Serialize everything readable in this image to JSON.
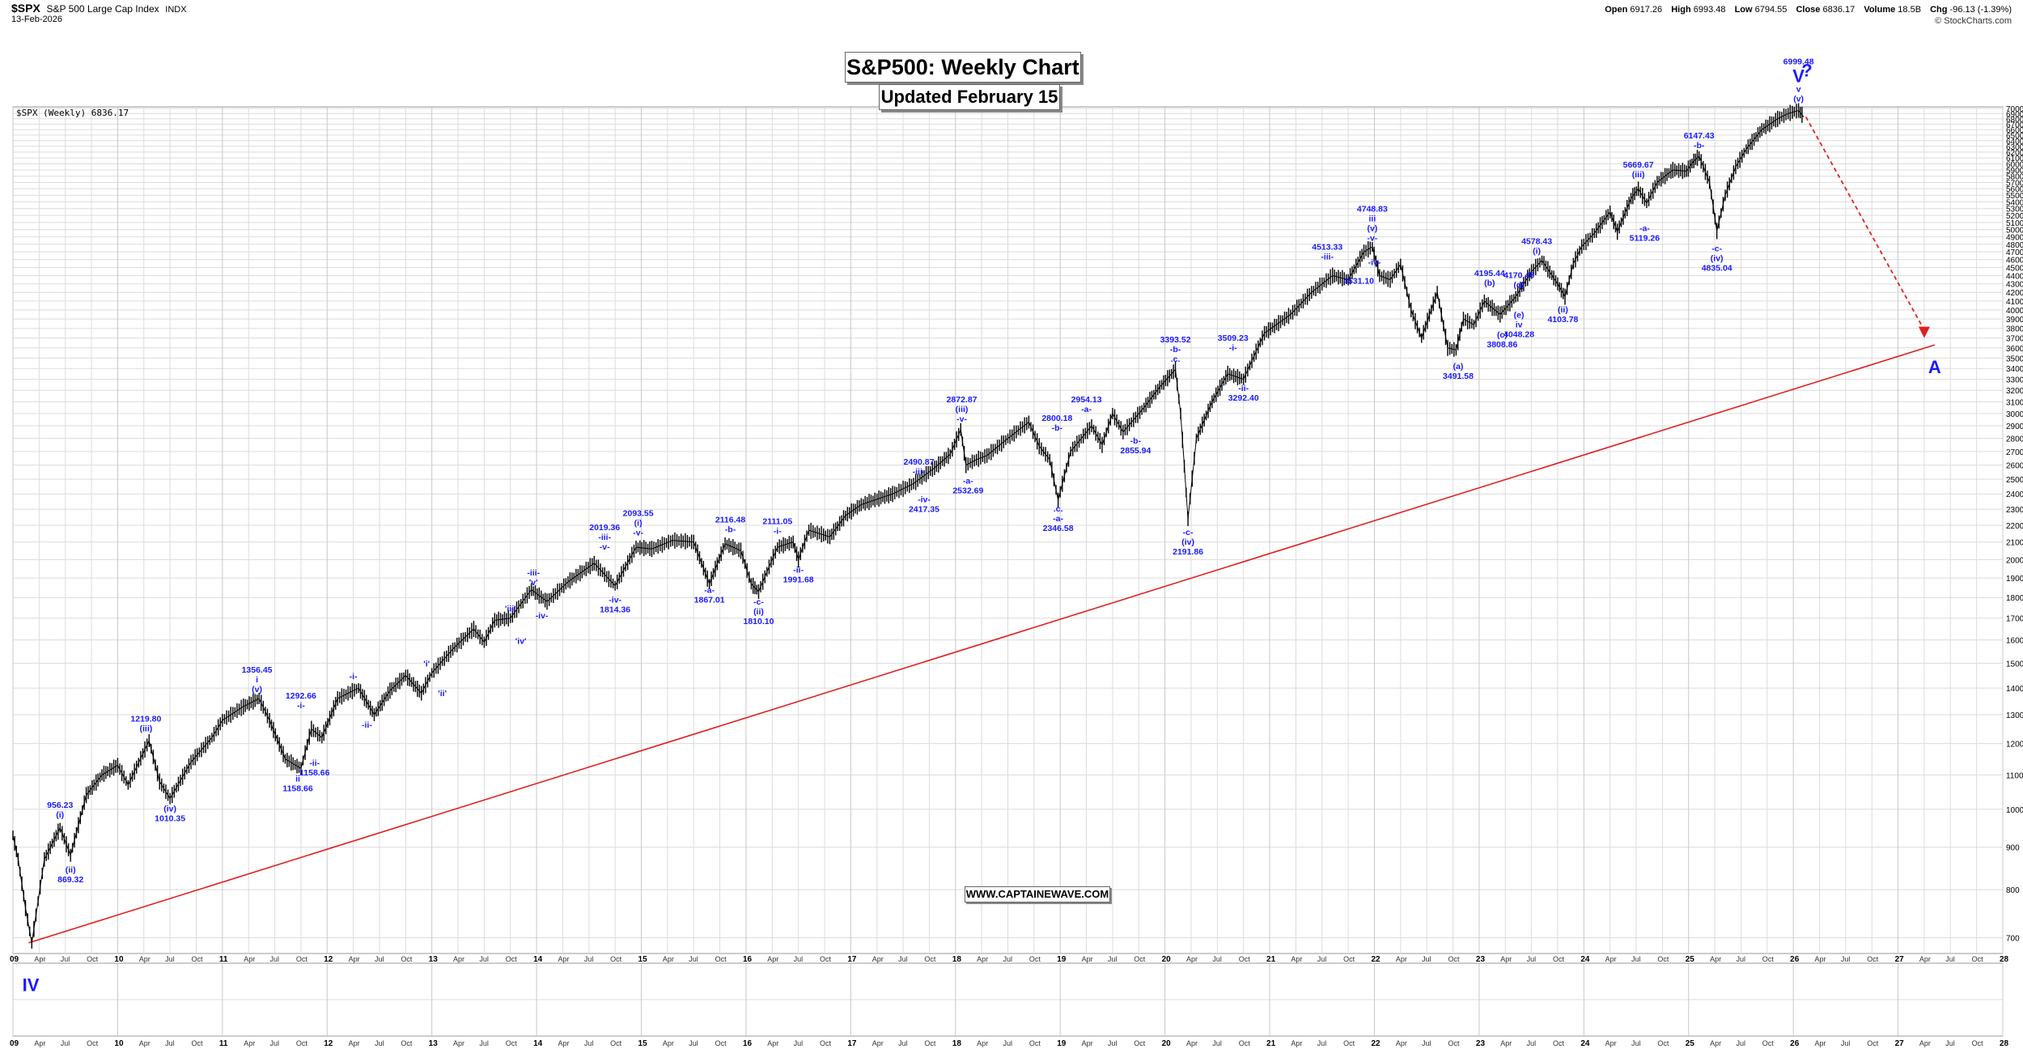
{
  "header": {
    "symbol": "$SPX",
    "name": "S&P 500 Large Cap Index",
    "exchange": "INDX",
    "date": "13-Feb-2026",
    "open_label": "Open",
    "open": "6917.26",
    "high_label": "High",
    "high": "6993.48",
    "low_label": "Low",
    "low": "6794.55",
    "close_label": "Close",
    "close": "6836.17",
    "volume_label": "Volume",
    "volume": "18.5B",
    "chg_label": "Chg",
    "chg": "-96.13 (-1.39%)",
    "source": "© StockCharts.com"
  },
  "title_box": "S&P500: Weekly Chart",
  "subtitle_box": "Updated February 15",
  "watermark": "WWW.CAPTAINEWAVE.COM",
  "legend": "$SPX (Weekly) 6836.17",
  "colors": {
    "wave_label": "#1a1aff",
    "price": "#000000",
    "trendline": "#e02020",
    "arrow": "#e02020",
    "grid": "#dcdcdc"
  },
  "chart_data": {
    "type": "line",
    "title": "S&P500: Weekly Chart",
    "scale": "log",
    "ylim": [
      650,
      7100
    ],
    "y_ticks": [
      700,
      800,
      900,
      1000,
      1100,
      1200,
      1300,
      1400,
      1500,
      1600,
      1700,
      1800,
      1900,
      2000,
      2100,
      2200,
      2300,
      2400,
      2500,
      2600,
      2700,
      2800,
      2900,
      3000,
      3100,
      3200,
      3300,
      3400,
      3500,
      3600,
      3700,
      3800,
      3900,
      4000,
      4100,
      4200,
      4300,
      4400,
      4500,
      4600,
      4700,
      4800,
      4900,
      5000,
      5100,
      5200,
      5300,
      5400,
      5500,
      5600,
      5700,
      5800,
      5900,
      6000,
      6100,
      6200,
      6300,
      6400,
      6500,
      6600,
      6700,
      6800,
      6900,
      7000
    ],
    "xlim": [
      2009.0,
      2028.0
    ],
    "year_ticks": [
      "09",
      "10",
      "11",
      "12",
      "13",
      "14",
      "15",
      "16",
      "17",
      "18",
      "19",
      "20",
      "21",
      "22",
      "23",
      "24",
      "25",
      "26",
      "27",
      "28"
    ],
    "month_ticks": [
      "Apr",
      "Jul",
      "Oct"
    ],
    "grid": true,
    "series": [
      {
        "points": [
          [
            2009.0,
            930
          ],
          [
            2009.05,
            870
          ],
          [
            2009.12,
            760
          ],
          [
            2009.18,
            690
          ],
          [
            2009.3,
            870
          ],
          [
            2009.45,
            950
          ],
          [
            2009.55,
            880
          ],
          [
            2009.7,
            1040
          ],
          [
            2009.85,
            1100
          ],
          [
            2010.0,
            1130
          ],
          [
            2010.1,
            1070
          ],
          [
            2010.3,
            1210
          ],
          [
            2010.4,
            1080
          ],
          [
            2010.5,
            1030
          ],
          [
            2010.7,
            1140
          ],
          [
            2010.9,
            1220
          ],
          [
            2011.0,
            1280
          ],
          [
            2011.2,
            1330
          ],
          [
            2011.35,
            1360
          ],
          [
            2011.45,
            1280
          ],
          [
            2011.6,
            1150
          ],
          [
            2011.75,
            1120
          ],
          [
            2011.85,
            1250
          ],
          [
            2011.95,
            1220
          ],
          [
            2012.1,
            1360
          ],
          [
            2012.3,
            1400
          ],
          [
            2012.45,
            1300
          ],
          [
            2012.6,
            1390
          ],
          [
            2012.75,
            1450
          ],
          [
            2012.9,
            1380
          ],
          [
            2013.0,
            1460
          ],
          [
            2013.2,
            1560
          ],
          [
            2013.4,
            1650
          ],
          [
            2013.5,
            1590
          ],
          [
            2013.6,
            1690
          ],
          [
            2013.75,
            1700
          ],
          [
            2013.95,
            1840
          ],
          [
            2014.1,
            1780
          ],
          [
            2014.3,
            1880
          ],
          [
            2014.55,
            1980
          ],
          [
            2014.75,
            1860
          ],
          [
            2014.95,
            2070
          ],
          [
            2015.1,
            2060
          ],
          [
            2015.3,
            2110
          ],
          [
            2015.5,
            2100
          ],
          [
            2015.65,
            1870
          ],
          [
            2015.8,
            2090
          ],
          [
            2015.95,
            2050
          ],
          [
            2016.05,
            1870
          ],
          [
            2016.12,
            1830
          ],
          [
            2016.3,
            2070
          ],
          [
            2016.45,
            2100
          ],
          [
            2016.5,
            2000
          ],
          [
            2016.6,
            2170
          ],
          [
            2016.8,
            2130
          ],
          [
            2016.95,
            2260
          ],
          [
            2017.1,
            2330
          ],
          [
            2017.4,
            2400
          ],
          [
            2017.6,
            2470
          ],
          [
            2017.8,
            2580
          ],
          [
            2017.95,
            2680
          ],
          [
            2018.05,
            2870
          ],
          [
            2018.1,
            2600
          ],
          [
            2018.2,
            2640
          ],
          [
            2018.3,
            2670
          ],
          [
            2018.5,
            2800
          ],
          [
            2018.7,
            2930
          ],
          [
            2018.8,
            2740
          ],
          [
            2018.9,
            2640
          ],
          [
            2018.98,
            2360
          ],
          [
            2019.1,
            2700
          ],
          [
            2019.3,
            2900
          ],
          [
            2019.4,
            2750
          ],
          [
            2019.5,
            3000
          ],
          [
            2019.6,
            2850
          ],
          [
            2019.8,
            3050
          ],
          [
            2019.95,
            3230
          ],
          [
            2020.1,
            3390
          ],
          [
            2020.15,
            3000
          ],
          [
            2020.22,
            2240
          ],
          [
            2020.3,
            2800
          ],
          [
            2020.45,
            3100
          ],
          [
            2020.6,
            3350
          ],
          [
            2020.75,
            3300
          ],
          [
            2020.95,
            3750
          ],
          [
            2021.2,
            3950
          ],
          [
            2021.4,
            4200
          ],
          [
            2021.6,
            4400
          ],
          [
            2021.75,
            4350
          ],
          [
            2021.9,
            4700
          ],
          [
            2021.98,
            4766
          ],
          [
            2022.05,
            4400
          ],
          [
            2022.15,
            4350
          ],
          [
            2022.25,
            4540
          ],
          [
            2022.35,
            4000
          ],
          [
            2022.45,
            3700
          ],
          [
            2022.6,
            4200
          ],
          [
            2022.7,
            3600
          ],
          [
            2022.78,
            3580
          ],
          [
            2022.85,
            3900
          ],
          [
            2022.95,
            3840
          ],
          [
            2023.05,
            4100
          ],
          [
            2023.2,
            3950
          ],
          [
            2023.35,
            4150
          ],
          [
            2023.5,
            4450
          ],
          [
            2023.6,
            4590
          ],
          [
            2023.75,
            4300
          ],
          [
            2023.82,
            4150
          ],
          [
            2023.9,
            4550
          ],
          [
            2023.98,
            4770
          ],
          [
            2024.1,
            4950
          ],
          [
            2024.25,
            5250
          ],
          [
            2024.32,
            4970
          ],
          [
            2024.45,
            5450
          ],
          [
            2024.52,
            5600
          ],
          [
            2024.6,
            5380
          ],
          [
            2024.7,
            5700
          ],
          [
            2024.85,
            5900
          ],
          [
            2024.98,
            5880
          ],
          [
            2025.05,
            6050
          ],
          [
            2025.1,
            6130
          ],
          [
            2025.2,
            5700
          ],
          [
            2025.27,
            4980
          ],
          [
            2025.35,
            5500
          ],
          [
            2025.45,
            5950
          ],
          [
            2025.55,
            6250
          ],
          [
            2025.7,
            6600
          ],
          [
            2025.85,
            6800
          ],
          [
            2025.95,
            6900
          ],
          [
            2026.05,
            6960
          ],
          [
            2026.1,
            6836
          ]
        ]
      }
    ],
    "trendline": {
      "x": [
        2009.15,
        2027.35
      ],
      "y": [
        690,
        3630
      ]
    },
    "projection": {
      "x": [
        2026.12,
        2027.25
      ],
      "y": [
        6836,
        3700
      ]
    },
    "wave_labels": [
      {
        "x": 2009.17,
        "y": 640,
        "lines": [
          "IV"
        ],
        "big": true,
        "below": true
      },
      {
        "x": 2009.45,
        "y": 960,
        "lines": [
          "956.23",
          "(i)"
        ]
      },
      {
        "x": 2009.55,
        "y": 870,
        "lines": [
          "(ii)",
          "869.32"
        ],
        "below": true
      },
      {
        "x": 2010.27,
        "y": 1220,
        "lines": [
          "1219.80",
          "(iii)"
        ]
      },
      {
        "x": 2010.5,
        "y": 1030,
        "lines": [
          "(iv)",
          "1010.35"
        ],
        "below": true
      },
      {
        "x": 2011.33,
        "y": 1360,
        "lines": [
          "1356.45",
          "i",
          "(v)"
        ]
      },
      {
        "x": 2011.75,
        "y": 1300,
        "lines": [
          "1292.66",
          "-i-"
        ]
      },
      {
        "x": 2011.72,
        "y": 1120,
        "lines": [
          "ii",
          "1158.66"
        ],
        "below": true
      },
      {
        "x": 2011.88,
        "y": 1170,
        "lines": [
          "-ii-",
          "1158.66"
        ],
        "below": true
      },
      {
        "x": 2012.25,
        "y": 1410,
        "lines": [
          "-i-"
        ]
      },
      {
        "x": 2012.38,
        "y": 1300,
        "lines": [
          "-ii-"
        ],
        "below": true
      },
      {
        "x": 2012.95,
        "y": 1460,
        "lines": [
          "'i'"
        ]
      },
      {
        "x": 2013.1,
        "y": 1420,
        "lines": [
          "'ii'"
        ],
        "below": true
      },
      {
        "x": 2013.75,
        "y": 1700,
        "lines": [
          "'iii'"
        ]
      },
      {
        "x": 2013.85,
        "y": 1640,
        "lines": [
          "'iv'"
        ],
        "below": true
      },
      {
        "x": 2013.97,
        "y": 1830,
        "lines": [
          "-iii-",
          "'v'"
        ]
      },
      {
        "x": 2014.05,
        "y": 1760,
        "lines": [
          "-iv-"
        ],
        "below": true
      },
      {
        "x": 2014.65,
        "y": 2020,
        "lines": [
          "2019.36",
          "-iii-",
          "-v-"
        ]
      },
      {
        "x": 2014.75,
        "y": 1840,
        "lines": [
          "-iv-",
          "1814.36"
        ],
        "below": true
      },
      {
        "x": 2014.97,
        "y": 2100,
        "lines": [
          "2093.55",
          "(i)",
          "-v-"
        ]
      },
      {
        "x": 2015.65,
        "y": 1890,
        "lines": [
          "-a-",
          "1867.01"
        ],
        "below": true
      },
      {
        "x": 2015.85,
        "y": 2120,
        "lines": [
          "2116.48",
          "-b-"
        ]
      },
      {
        "x": 2016.12,
        "y": 1830,
        "lines": [
          "-c-",
          "(ii)",
          "1810.10"
        ],
        "below": true
      },
      {
        "x": 2016.3,
        "y": 2110,
        "lines": [
          "2111.05",
          "-i-"
        ]
      },
      {
        "x": 2016.5,
        "y": 2000,
        "lines": [
          "-ii-",
          "1991.68"
        ],
        "below": true
      },
      {
        "x": 2017.65,
        "y": 2490,
        "lines": [
          "2490.87",
          "-iii-"
        ]
      },
      {
        "x": 2017.7,
        "y": 2430,
        "lines": [
          "-iv-",
          "2417.35"
        ],
        "below": true
      },
      {
        "x": 2018.06,
        "y": 2880,
        "lines": [
          "2872.87",
          "(iii)",
          "-v-"
        ]
      },
      {
        "x": 2018.12,
        "y": 2560,
        "lines": [
          "-a-",
          "2532.69"
        ],
        "below": true
      },
      {
        "x": 2018.97,
        "y": 2810,
        "lines": [
          "2800.18",
          "-b-"
        ]
      },
      {
        "x": 2018.98,
        "y": 2370,
        "lines": [
          ".c.",
          "-a-",
          "2346.58"
        ],
        "below": true
      },
      {
        "x": 2019.25,
        "y": 2960,
        "lines": [
          "2954.13",
          "-a-"
        ]
      },
      {
        "x": 2019.72,
        "y": 2860,
        "lines": [
          "-b-",
          "2855.94"
        ],
        "below": true
      },
      {
        "x": 2020.1,
        "y": 3400,
        "lines": [
          "3393.52",
          "-b-",
          ".c."
        ]
      },
      {
        "x": 2020.22,
        "y": 2220,
        "lines": [
          "-c-",
          "(iv)",
          "2191.86"
        ],
        "below": true
      },
      {
        "x": 2020.65,
        "y": 3510,
        "lines": [
          "3509.23",
          "-i-"
        ]
      },
      {
        "x": 2020.75,
        "y": 3310,
        "lines": [
          "-ii-",
          "3292.40"
        ],
        "below": true
      },
      {
        "x": 2021.55,
        "y": 4520,
        "lines": [
          "4513.33",
          "-iii-"
        ]
      },
      {
        "x": 2021.85,
        "y": 4460,
        "lines": [
          "4531.10"
        ],
        "below": true
      },
      {
        "x": 2021.98,
        "y": 4760,
        "lines": [
          "4748.83",
          "iii",
          "(v)",
          "-v-"
        ]
      },
      {
        "x": 2022.0,
        "y": 4450,
        "lines": [
          "-iv-"
        ]
      },
      {
        "x": 2022.8,
        "y": 3520,
        "lines": [
          "(a)",
          "3491.58"
        ],
        "below": true
      },
      {
        "x": 2023.1,
        "y": 4200,
        "lines": [
          "4195.44",
          "(b)"
        ]
      },
      {
        "x": 2023.38,
        "y": 4180,
        "lines": [
          "4170.46",
          "(d)"
        ]
      },
      {
        "x": 2023.22,
        "y": 3840,
        "lines": [
          "(c)",
          "3808.86"
        ],
        "below": true
      },
      {
        "x": 2023.38,
        "y": 4060,
        "lines": [
          "(e)",
          "iv",
          "4048.28"
        ],
        "below": true
      },
      {
        "x": 2023.55,
        "y": 4590,
        "lines": [
          "4578.43",
          "(i)"
        ]
      },
      {
        "x": 2023.8,
        "y": 4120,
        "lines": [
          "(ii)",
          "4103.78"
        ],
        "below": true
      },
      {
        "x": 2024.52,
        "y": 5680,
        "lines": [
          "5669.67",
          "(iii)"
        ]
      },
      {
        "x": 2024.58,
        "y": 5160,
        "lines": [
          "-a-",
          "5119.26"
        ],
        "below": true
      },
      {
        "x": 2025.1,
        "y": 6160,
        "lines": [
          "6147.43",
          "-b-"
        ]
      },
      {
        "x": 2025.27,
        "y": 4880,
        "lines": [
          "-c-",
          "(iv)",
          "4835.04"
        ],
        "below": true
      },
      {
        "x": 2026.05,
        "y": 7010,
        "lines": [
          "6999.48",
          "V",
          "v",
          "(v)"
        ],
        "big_index": 1
      },
      {
        "x": 2026.13,
        "y": 7020,
        "lines": [
          "?"
        ],
        "big": true,
        "offset_up": 30
      },
      {
        "x": 2027.35,
        "y": 3560,
        "lines": [
          "A"
        ],
        "big": true,
        "below": true
      }
    ]
  }
}
